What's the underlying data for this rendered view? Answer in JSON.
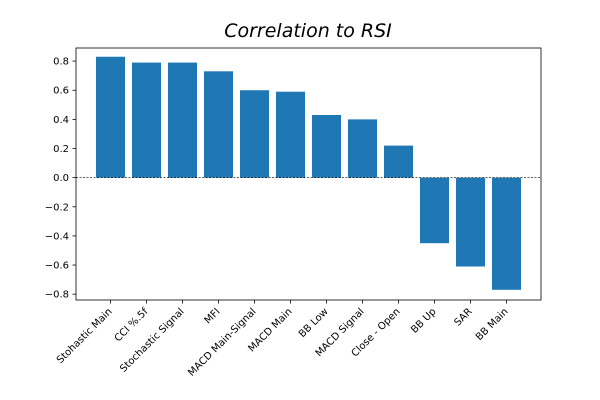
{
  "chart_data": {
    "type": "bar",
    "title": "Correlation to RSI",
    "xlabel": "",
    "ylabel": "",
    "categories": [
      "Stohastic Main",
      "CCI %.5f",
      "Stochastic Signal",
      "MFI",
      "MACD Main-Signal",
      "MACD Main",
      "BB Low",
      "MACD Signal",
      "Close - Open",
      "BB Up",
      "SAR",
      "BB Main"
    ],
    "values": [
      0.83,
      0.79,
      0.79,
      0.73,
      0.6,
      0.59,
      0.43,
      0.4,
      0.22,
      -0.45,
      -0.61,
      -0.77
    ],
    "ylim": [
      -0.84,
      0.89
    ],
    "yticks": [
      -0.8,
      -0.6,
      -0.4,
      -0.2,
      0.0,
      0.2,
      0.4,
      0.6,
      0.8
    ],
    "ytick_labels": [
      "−0.8",
      "−0.6",
      "−0.4",
      "−0.2",
      "0.0",
      "0.2",
      "0.4",
      "0.6",
      "0.8"
    ],
    "zero_line": true,
    "grid": false,
    "colors": {
      "bar": "#1f77b4",
      "axis": "#000000",
      "zero_line": "#000000"
    }
  }
}
